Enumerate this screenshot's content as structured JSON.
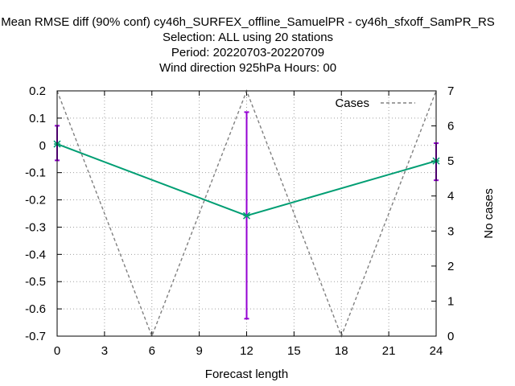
{
  "chart_data": {
    "type": "line",
    "title_lines": [
      "Mean RMSE diff (90% conf) cy46h_SURFEX_offline_SamuelPR - cy46h_sfxoff_SamPR_RS",
      "Selection: ALL using    20 stations",
      "Period: 20220703-20220709",
      "Wind direction 925hPa   Hours:  00"
    ],
    "xlabel": "Forecast length",
    "ylabel": "",
    "y2label": "No cases",
    "x_ticks": [
      0,
      3,
      6,
      9,
      12,
      15,
      18,
      21,
      24
    ],
    "y_ticks": [
      0.2,
      0.1,
      0,
      -0.1,
      -0.2,
      -0.3,
      -0.4,
      -0.5,
      -0.6,
      -0.7
    ],
    "y_tick_labels": [
      "0.2",
      "0.1",
      "0",
      "-0.1",
      "-0.2",
      "-0.3",
      "-0.4",
      "-0.5",
      "-0.6",
      "-0.7"
    ],
    "y2_ticks": [
      0,
      1,
      2,
      3,
      4,
      5,
      6,
      7
    ],
    "xlim": [
      0,
      24
    ],
    "ylim": [
      -0.7,
      0.2
    ],
    "y2lim": [
      0,
      7
    ],
    "grid": true,
    "legend_position": "top-right",
    "series": [
      {
        "name": "",
        "axis": "left",
        "color": "#009e73",
        "x": [
          0,
          12,
          24
        ],
        "y": [
          0.005,
          -0.258,
          -0.057
        ],
        "err_low": [
          -0.055,
          -0.636,
          -0.128
        ],
        "err_high": [
          0.072,
          0.122,
          0.008
        ],
        "err_color": "#9400d3"
      },
      {
        "name": "Cases",
        "axis": "right",
        "color": "#808080",
        "dashed": true,
        "x": [
          0,
          6,
          12,
          18,
          24
        ],
        "y": [
          7,
          0,
          7,
          0,
          7
        ]
      }
    ]
  }
}
